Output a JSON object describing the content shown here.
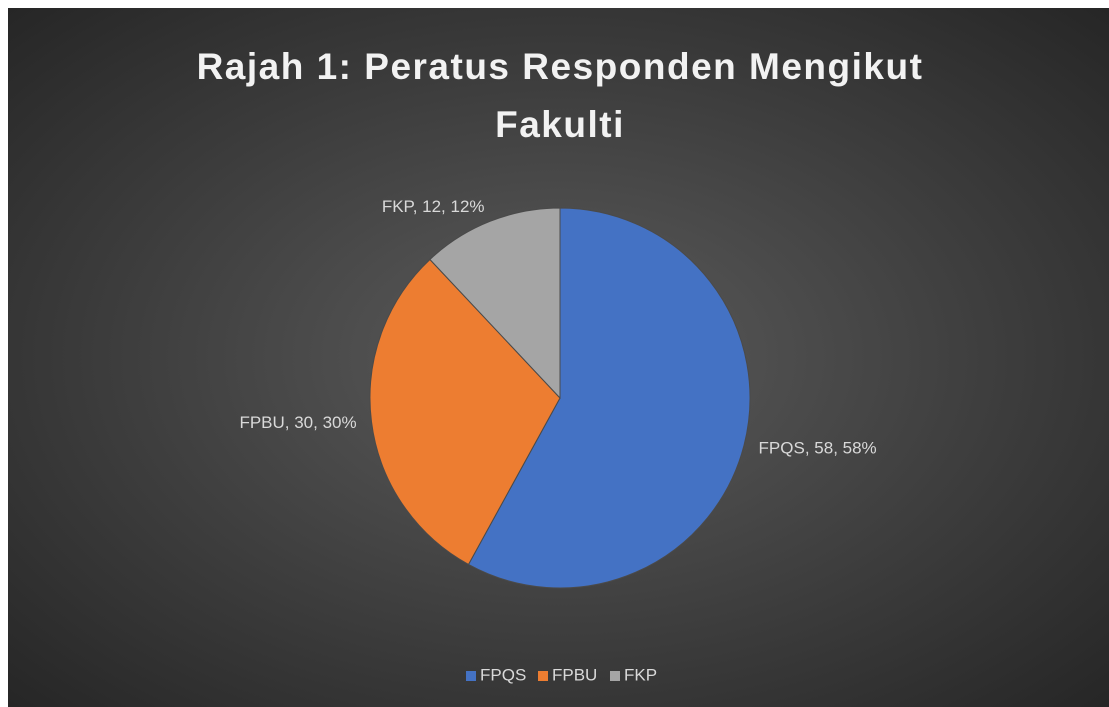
{
  "chart_data": {
    "type": "pie",
    "title": "Rajah 1: Peratus Responden Mengikut Fakulti",
    "categories": [
      "FPQS",
      "FPBU",
      "FKP"
    ],
    "values": [
      58,
      30,
      12
    ],
    "value_labels": [
      "FPQS, 58, 58%",
      "FPBU, 30, 30%",
      "FKP, 12, 12%"
    ],
    "colors": [
      "#4472c4",
      "#ed7d31",
      "#a5a5a5"
    ],
    "legend": "bottom"
  }
}
